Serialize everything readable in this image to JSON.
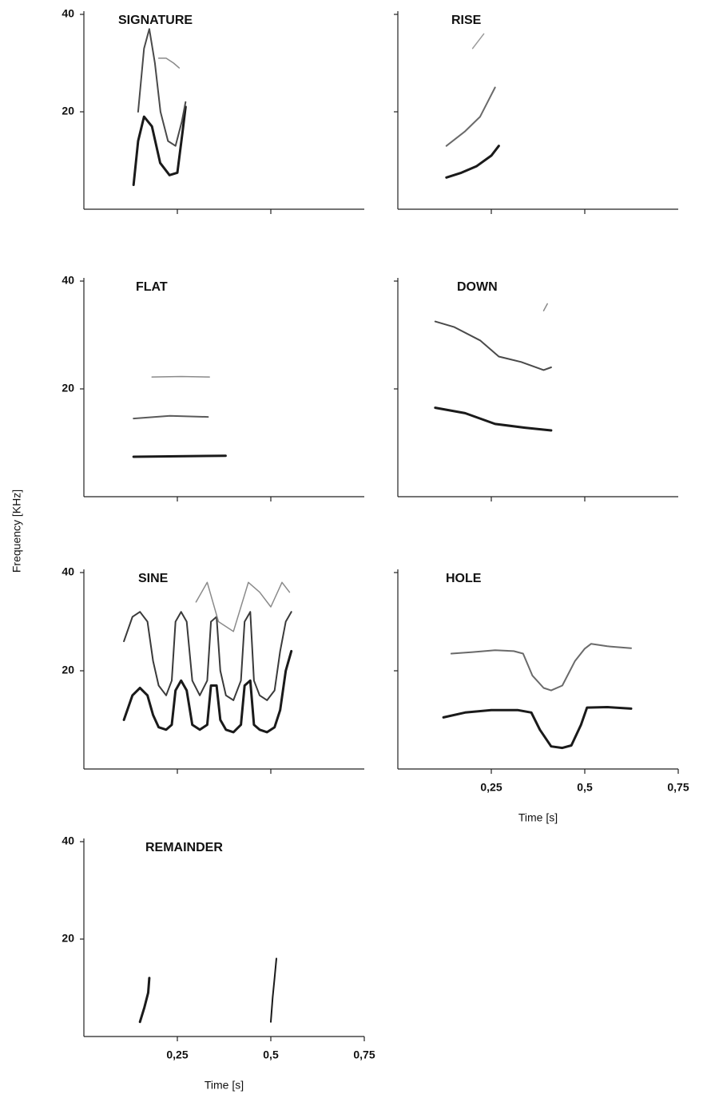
{
  "ylabel": "Frequency [KHz]",
  "chart_data": [
    {
      "type": "line",
      "title": "SIGNATURE",
      "xlim": [
        0,
        0.75
      ],
      "ylim": [
        0,
        40
      ],
      "xticks": [
        0.25,
        0.5
      ],
      "yticks": [
        20,
        40
      ],
      "xtick_labels": false,
      "ytick_labels": true,
      "series": [
        {
          "color": "#1a1a1a",
          "x": [
            0.133,
            0.145,
            0.161,
            0.182,
            0.204,
            0.229,
            0.25,
            0.264,
            0.272
          ],
          "values": [
            5,
            14,
            19,
            17,
            9.5,
            7,
            7.5,
            16,
            21
          ]
        },
        {
          "color": "#4a4a4a",
          "x": [
            0.145,
            0.161,
            0.175,
            0.19,
            0.205,
            0.225,
            0.245,
            0.262,
            0.272
          ],
          "values": [
            20,
            33,
            37,
            30,
            20,
            14,
            13,
            18,
            22
          ]
        },
        {
          "color": "#8a8a8a",
          "x": [
            0.2,
            0.22,
            0.24,
            0.255
          ],
          "values": [
            31,
            31,
            30,
            29
          ]
        }
      ]
    },
    {
      "type": "line",
      "title": "RISE",
      "xlim": [
        0,
        0.75
      ],
      "ylim": [
        0,
        40
      ],
      "xticks": [
        0.25,
        0.5
      ],
      "yticks": [
        20,
        40
      ],
      "xtick_labels": false,
      "ytick_labels": false,
      "series": [
        {
          "color": "#1a1a1a",
          "x": [
            0.13,
            0.17,
            0.21,
            0.25,
            0.27
          ],
          "values": [
            6.5,
            7.5,
            8.8,
            11,
            13
          ]
        },
        {
          "color": "#6a6a6a",
          "x": [
            0.13,
            0.18,
            0.22,
            0.26
          ],
          "values": [
            13,
            16,
            19,
            25
          ]
        },
        {
          "color": "#9a9a9a",
          "x": [
            0.2,
            0.23
          ],
          "values": [
            33,
            36
          ]
        }
      ]
    },
    {
      "type": "line",
      "title": "FLAT",
      "xlim": [
        0,
        0.75
      ],
      "ylim": [
        0,
        40
      ],
      "xticks": [
        0.25,
        0.5
      ],
      "yticks": [
        20,
        40
      ],
      "xtick_labels": false,
      "ytick_labels": true,
      "series": [
        {
          "color": "#1a1a1a",
          "x": [
            0.133,
            0.25,
            0.379
          ],
          "values": [
            7.4,
            7.5,
            7.6
          ]
        },
        {
          "color": "#5a5a5a",
          "x": [
            0.133,
            0.23,
            0.332
          ],
          "values": [
            14.5,
            15,
            14.8
          ]
        },
        {
          "color": "#8a8a8a",
          "x": [
            0.182,
            0.26,
            0.336
          ],
          "values": [
            22.2,
            22.3,
            22.2
          ]
        }
      ]
    },
    {
      "type": "line",
      "title": "DOWN",
      "xlim": [
        0,
        0.75
      ],
      "ylim": [
        0,
        40
      ],
      "xticks": [
        0.25,
        0.5
      ],
      "yticks": [
        20,
        40
      ],
      "xtick_labels": false,
      "ytick_labels": false,
      "series": [
        {
          "color": "#1a1a1a",
          "x": [
            0.1,
            0.18,
            0.26,
            0.34,
            0.41
          ],
          "values": [
            16.5,
            15.5,
            13.5,
            12.8,
            12.3
          ]
        },
        {
          "color": "#4a4a4a",
          "x": [
            0.1,
            0.15,
            0.22,
            0.27,
            0.33,
            0.39,
            0.41
          ],
          "values": [
            32.5,
            31.5,
            29,
            26,
            25,
            23.5,
            24
          ]
        },
        {
          "color": "#8a8a8a",
          "x": [
            0.39,
            0.4
          ],
          "values": [
            34.5,
            35.8
          ]
        }
      ]
    },
    {
      "type": "line",
      "title": "SINE",
      "xlim": [
        0,
        0.75
      ],
      "ylim": [
        0,
        40
      ],
      "xticks": [
        0.25,
        0.5
      ],
      "yticks": [
        20,
        40
      ],
      "xtick_labels": false,
      "ytick_labels": true,
      "series": [
        {
          "color": "#1a1a1a",
          "x": [
            0.107,
            0.13,
            0.15,
            0.17,
            0.185,
            0.2,
            0.22,
            0.235,
            0.245,
            0.26,
            0.275,
            0.29,
            0.31,
            0.33,
            0.34,
            0.355,
            0.365,
            0.38,
            0.4,
            0.42,
            0.43,
            0.445,
            0.455,
            0.47,
            0.49,
            0.51,
            0.525,
            0.54,
            0.555
          ],
          "values": [
            10,
            15,
            16.5,
            15,
            11,
            8.5,
            8,
            9,
            16,
            18,
            16,
            9,
            8,
            9,
            17,
            17,
            10,
            8,
            7.5,
            9,
            17,
            18,
            9,
            8,
            7.5,
            8.5,
            12,
            20,
            24
          ]
        },
        {
          "color": "#3a3a3a",
          "x": [
            0.107,
            0.13,
            0.15,
            0.17,
            0.185,
            0.2,
            0.22,
            0.235,
            0.245,
            0.26,
            0.275,
            0.29,
            0.31,
            0.33,
            0.34,
            0.355,
            0.365,
            0.38,
            0.4,
            0.42,
            0.43,
            0.445,
            0.455,
            0.47,
            0.49,
            0.51,
            0.525,
            0.54,
            0.555
          ],
          "values": [
            26,
            31,
            32,
            30,
            22,
            17,
            15,
            18,
            30,
            32,
            30,
            18,
            15,
            18,
            30,
            31,
            20,
            15,
            14,
            18,
            30,
            32,
            18,
            15,
            14,
            16,
            24,
            30,
            32
          ]
        },
        {
          "color": "#8a8a8a",
          "x": [
            0.3,
            0.33,
            0.36,
            0.4,
            0.44,
            0.47,
            0.5,
            0.53,
            0.55
          ],
          "values": [
            34,
            38,
            30,
            28,
            38,
            36,
            33,
            38,
            36
          ]
        }
      ]
    },
    {
      "type": "line",
      "title": "HOLE",
      "xlim": [
        0,
        0.75
      ],
      "ylim": [
        0,
        40
      ],
      "xlabel": "Time [s]",
      "xticks": [
        {
          "value": 0.25,
          "label": "0,25"
        },
        {
          "value": 0.5,
          "label": "0,5"
        },
        {
          "value": 0.75,
          "label": "0,75"
        }
      ],
      "yticks": [
        20,
        40
      ],
      "xtick_labels": true,
      "ytick_labels": false,
      "series": [
        {
          "color": "#1a1a1a",
          "x": [
            0.122,
            0.18,
            0.25,
            0.32,
            0.357,
            0.38,
            0.41,
            0.44,
            0.464,
            0.49,
            0.506,
            0.56,
            0.624
          ],
          "values": [
            10.5,
            11.5,
            12,
            12,
            11.5,
            8,
            4.6,
            4.3,
            4.8,
            9,
            12.5,
            12.6,
            12.3
          ]
        },
        {
          "color": "#6a6a6a",
          "x": [
            0.143,
            0.2,
            0.26,
            0.31,
            0.335,
            0.36,
            0.39,
            0.41,
            0.44,
            0.474,
            0.5,
            0.517,
            0.56,
            0.624
          ],
          "values": [
            23.5,
            23.8,
            24.2,
            24,
            23.5,
            19,
            16.5,
            16,
            17,
            22,
            24.5,
            25.5,
            25,
            24.6
          ]
        }
      ]
    },
    {
      "type": "line",
      "title": "REMAINDER",
      "xlim": [
        0,
        0.75
      ],
      "ylim": [
        0,
        40
      ],
      "xlabel": "Time [s]",
      "xticks": [
        {
          "value": 0.25,
          "label": "0,25"
        },
        {
          "value": 0.5,
          "label": "0,5"
        },
        {
          "value": 0.75,
          "label": "0,75"
        }
      ],
      "yticks": [
        20,
        40
      ],
      "xtick_labels": true,
      "ytick_labels": true,
      "series": [
        {
          "color": "#1a1a1a",
          "x": [
            0.15,
            0.162,
            0.172,
            0.175
          ],
          "values": [
            3,
            6,
            9,
            12
          ]
        },
        {
          "color": "#1a1a1a",
          "x": [
            0.5,
            0.505,
            0.51,
            0.515
          ],
          "values": [
            3,
            8,
            12,
            16
          ]
        }
      ]
    }
  ]
}
